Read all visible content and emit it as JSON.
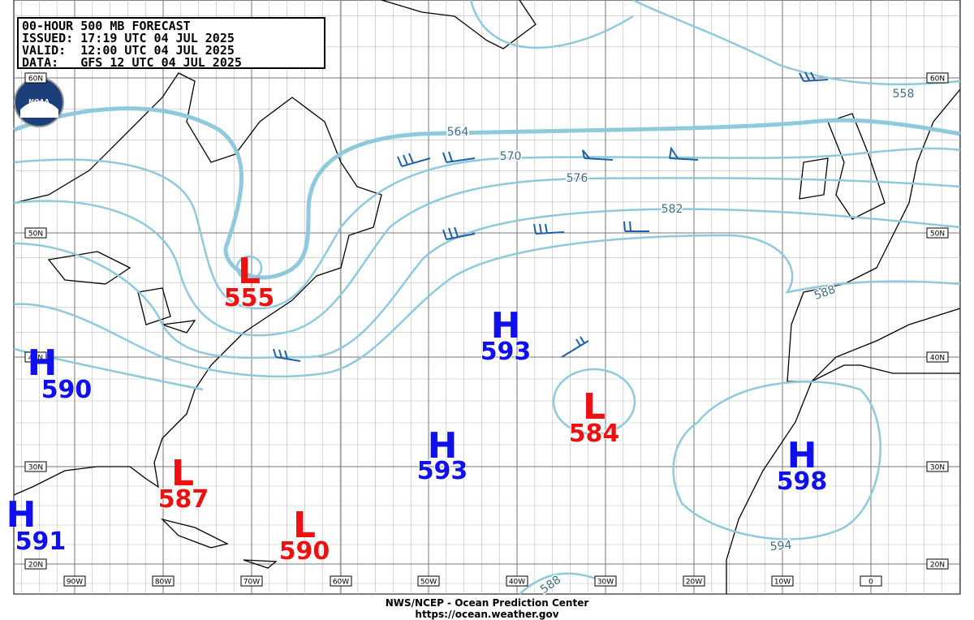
{
  "header": {
    "lines": [
      "00-HOUR 500 MB FORECAST",
      "ISSUED: 17:19 UTC 04 JUL 2025",
      "VALID:  12:00 UTC 04 JUL 2025",
      "DATA:   GFS 12 UTC 04 JUL 2025"
    ]
  },
  "logo": "NOAA",
  "lat_labels": [
    "60N",
    "50N",
    "40N",
    "30N",
    "20N"
  ],
  "lon_labels": [
    "90W",
    "80W",
    "70W",
    "60W",
    "50W",
    "40W",
    "30W",
    "20W",
    "10W",
    "0"
  ],
  "contour_labels": [
    "558",
    "564",
    "570",
    "576",
    "582",
    "588",
    "594",
    "588"
  ],
  "centers": [
    {
      "letter": "L",
      "value": "555"
    },
    {
      "letter": "H",
      "value": "590"
    },
    {
      "letter": "L",
      "value": "587"
    },
    {
      "letter": "H",
      "value": "591"
    },
    {
      "letter": "L",
      "value": "590"
    },
    {
      "letter": "H",
      "value": "593"
    },
    {
      "letter": "H",
      "value": "593"
    },
    {
      "letter": "L",
      "value": "584"
    },
    {
      "letter": "H",
      "value": "598"
    }
  ],
  "footer": {
    "line1": "NWS/NCEP - Ocean Prediction Center",
    "line2": "https://ocean.weather.gov"
  }
}
